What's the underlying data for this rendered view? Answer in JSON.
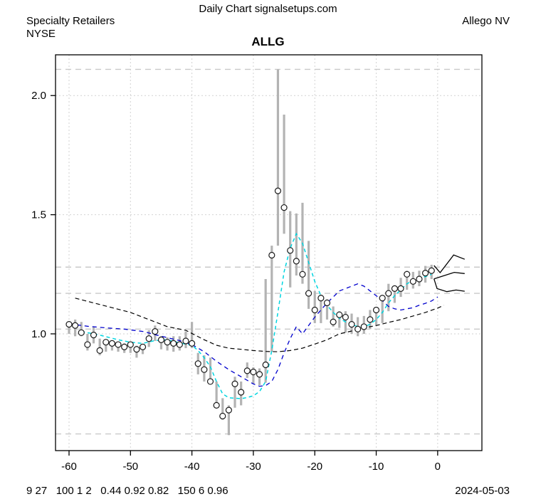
{
  "header": {
    "top_center": "Daily Chart signalsetups.com",
    "sector": "Specialty Retailers",
    "exchange": "NYSE",
    "company": "Allego NV",
    "symbol": "ALLG"
  },
  "footer": {
    "stats": "9 27   100 1 2   0.44 0.92 0.82   150 6 0.96",
    "date": "2024-05-03"
  },
  "chart_data": {
    "type": "bar",
    "subtype": "daily-price-range-bars-with-close-markers",
    "title": "ALLG",
    "xlabel": "",
    "ylabel": "",
    "xlim": [
      -62.2,
      7.2
    ],
    "ylim": [
      0.51,
      2.171
    ],
    "x_ticks": [
      -60,
      -50,
      -40,
      -30,
      -20,
      -10,
      0
    ],
    "x_tick_labels": [
      "-60",
      "-50",
      "-40",
      "-30",
      "-20",
      "-10",
      "0"
    ],
    "y_ticks": [
      1.0,
      1.5,
      2.0
    ],
    "y_tick_labels": [
      "1.0",
      "1.5",
      "2.0"
    ],
    "h_dashed_levels": [
      2.11,
      1.28,
      1.17,
      1.02,
      0.58
    ],
    "h_dotted_levels": [
      2.0,
      1.5,
      1.0
    ],
    "grid": "vertical dotted at every x tick; horizontal dotted at y ticks; horizontal dashed at signal levels",
    "bars_format": [
      "day",
      "high",
      "low",
      "close"
    ],
    "bars": [
      [
        -60,
        1.05,
        1.0,
        1.04
      ],
      [
        -59,
        1.06,
        0.99,
        1.035
      ],
      [
        -58,
        1.05,
        0.99,
        1.005
      ],
      [
        -57,
        1.0,
        0.93,
        0.955
      ],
      [
        -56,
        1.03,
        0.96,
        0.995
      ],
      [
        -55,
        0.98,
        0.91,
        0.93
      ],
      [
        -54,
        0.975,
        0.925,
        0.965
      ],
      [
        -53,
        0.97,
        0.93,
        0.96
      ],
      [
        -52,
        0.965,
        0.925,
        0.955
      ],
      [
        -51,
        0.96,
        0.92,
        0.945
      ],
      [
        -50,
        0.965,
        0.92,
        0.955
      ],
      [
        -49,
        0.95,
        0.9,
        0.935
      ],
      [
        -48,
        0.955,
        0.915,
        0.945
      ],
      [
        -47,
        1.015,
        0.945,
        0.98
      ],
      [
        -46,
        1.035,
        0.97,
        1.01
      ],
      [
        -45,
        0.99,
        0.935,
        0.975
      ],
      [
        -44,
        0.985,
        0.93,
        0.965
      ],
      [
        -43,
        0.99,
        0.925,
        0.96
      ],
      [
        -42,
        0.99,
        0.93,
        0.955
      ],
      [
        -41,
        1.01,
        0.94,
        0.97
      ],
      [
        -40,
        1.05,
        0.94,
        0.96
      ],
      [
        -39,
        0.92,
        0.83,
        0.875
      ],
      [
        -38,
        0.91,
        0.8,
        0.85
      ],
      [
        -37,
        0.9,
        0.79,
        0.8
      ],
      [
        -36,
        0.8,
        0.69,
        0.7
      ],
      [
        -35,
        0.73,
        0.64,
        0.655
      ],
      [
        -34,
        0.7,
        0.575,
        0.68
      ],
      [
        -33,
        0.82,
        0.69,
        0.79
      ],
      [
        -32,
        0.8,
        0.7,
        0.755
      ],
      [
        -31,
        0.88,
        0.815,
        0.845
      ],
      [
        -30,
        0.86,
        0.79,
        0.84
      ],
      [
        -29,
        0.855,
        0.785,
        0.83
      ],
      [
        -28,
        1.23,
        0.795,
        0.87
      ],
      [
        -27,
        1.37,
        0.925,
        1.33
      ],
      [
        -26,
        2.11,
        1.37,
        1.6
      ],
      [
        -25,
        1.92,
        1.42,
        1.53
      ],
      [
        -24,
        1.515,
        1.195,
        1.35
      ],
      [
        -23,
        1.505,
        1.245,
        1.305
      ],
      [
        -22,
        1.55,
        1.21,
        1.25
      ],
      [
        -21,
        1.39,
        1.105,
        1.17
      ],
      [
        -20,
        1.18,
        1.045,
        1.1
      ],
      [
        -19,
        1.165,
        1.045,
        1.15
      ],
      [
        -18,
        1.145,
        1.06,
        1.13
      ],
      [
        -17,
        1.115,
        1.03,
        1.05
      ],
      [
        -16,
        1.095,
        1.025,
        1.08
      ],
      [
        -15,
        1.095,
        1.005,
        1.07
      ],
      [
        -14,
        1.085,
        1.0,
        1.04
      ],
      [
        -13,
        1.07,
        0.99,
        1.02
      ],
      [
        -12,
        1.075,
        1.0,
        1.03
      ],
      [
        -11,
        1.1,
        1.02,
        1.06
      ],
      [
        -10,
        1.11,
        1.035,
        1.1
      ],
      [
        -9,
        1.155,
        1.045,
        1.15
      ],
      [
        -8,
        1.21,
        1.095,
        1.17
      ],
      [
        -7,
        1.195,
        1.13,
        1.19
      ],
      [
        -6,
        1.235,
        1.155,
        1.19
      ],
      [
        -5,
        1.265,
        1.185,
        1.25
      ],
      [
        -4,
        1.26,
        1.19,
        1.22
      ],
      [
        -3,
        1.265,
        1.2,
        1.23
      ],
      [
        -2,
        1.285,
        1.215,
        1.255
      ],
      [
        -1,
        1.29,
        1.23,
        1.265
      ]
    ],
    "series": [
      {
        "name": "slow-ma",
        "style": "dashed",
        "color": "#000000",
        "width": 1.2,
        "dash": "6,4",
        "points": [
          [
            -59,
            1.15
          ],
          [
            -56,
            1.13
          ],
          [
            -53,
            1.11
          ],
          [
            -50,
            1.09
          ],
          [
            -47,
            1.06
          ],
          [
            -44,
            1.03
          ],
          [
            -41,
            1.015
          ],
          [
            -38,
            0.975
          ],
          [
            -36,
            0.952
          ],
          [
            -34,
            0.94
          ],
          [
            -32,
            0.935
          ],
          [
            -30,
            0.93
          ],
          [
            -28,
            0.926
          ],
          [
            -26,
            0.925
          ],
          [
            -24,
            0.93
          ],
          [
            -22,
            0.94
          ],
          [
            -20,
            0.957
          ],
          [
            -18,
            0.975
          ],
          [
            -16,
            1.0
          ],
          [
            -14,
            1.012
          ],
          [
            -12,
            1.025
          ],
          [
            -10,
            1.035
          ],
          [
            -8,
            1.048
          ],
          [
            -6,
            1.06
          ],
          [
            -4,
            1.075
          ],
          [
            -2,
            1.09
          ],
          [
            0,
            1.108
          ],
          [
            1,
            1.12
          ]
        ]
      },
      {
        "name": "medium-ma",
        "style": "dashed",
        "color": "#0000cd",
        "width": 1.3,
        "dash": "6,5",
        "points": [
          [
            -60,
            1.042
          ],
          [
            -57,
            1.032
          ],
          [
            -54,
            1.025
          ],
          [
            -51,
            1.02
          ],
          [
            -48,
            1.01
          ],
          [
            -45,
            0.99
          ],
          [
            -42,
            0.972
          ],
          [
            -40,
            0.955
          ],
          [
            -38,
            0.925
          ],
          [
            -36,
            0.885
          ],
          [
            -34,
            0.85
          ],
          [
            -32,
            0.82
          ],
          [
            -30,
            0.79
          ],
          [
            -29,
            0.78
          ],
          [
            -28,
            0.783
          ],
          [
            -27,
            0.8
          ],
          [
            -26,
            0.85
          ],
          [
            -25,
            0.92
          ],
          [
            -24,
            0.98
          ],
          [
            -23,
            1.03
          ],
          [
            -22,
            1.0
          ],
          [
            -20,
            1.07
          ],
          [
            -18,
            1.13
          ],
          [
            -16,
            1.18
          ],
          [
            -14,
            1.2
          ],
          [
            -13,
            1.21
          ],
          [
            -12,
            1.2
          ],
          [
            -11,
            1.18
          ],
          [
            -10,
            1.16
          ],
          [
            -9,
            1.14
          ],
          [
            -8,
            1.115
          ],
          [
            -7,
            1.105
          ],
          [
            -6,
            1.1
          ],
          [
            -5,
            1.105
          ],
          [
            -4,
            1.11
          ],
          [
            -3,
            1.12
          ],
          [
            -2,
            1.128
          ],
          [
            -1,
            1.138
          ],
          [
            0,
            1.155
          ]
        ]
      },
      {
        "name": "fast-ma",
        "style": "dashed",
        "color": "#00d5e0",
        "width": 1.5,
        "dash": "5,4",
        "points": [
          [
            -58,
            1.01
          ],
          [
            -55,
            0.995
          ],
          [
            -52,
            0.975
          ],
          [
            -50,
            0.965
          ],
          [
            -48,
            0.96
          ],
          [
            -46,
            0.972
          ],
          [
            -44,
            0.975
          ],
          [
            -42,
            0.962
          ],
          [
            -40,
            0.952
          ],
          [
            -39,
            0.93
          ],
          [
            -38,
            0.9
          ],
          [
            -37,
            0.862
          ],
          [
            -36,
            0.8
          ],
          [
            -35,
            0.748
          ],
          [
            -34,
            0.732
          ],
          [
            -33,
            0.73
          ],
          [
            -32,
            0.728
          ],
          [
            -31,
            0.733
          ],
          [
            -30,
            0.74
          ],
          [
            -29,
            0.758
          ],
          [
            -28,
            0.8
          ],
          [
            -27,
            0.93
          ],
          [
            -26,
            1.09
          ],
          [
            -25,
            1.26
          ],
          [
            -24,
            1.36
          ],
          [
            -23,
            1.42
          ],
          [
            -22,
            1.38
          ],
          [
            -21,
            1.3
          ],
          [
            -20,
            1.22
          ],
          [
            -19,
            1.16
          ],
          [
            -18,
            1.12
          ],
          [
            -17,
            1.09
          ],
          [
            -16,
            1.065
          ],
          [
            -15,
            1.05
          ],
          [
            -14,
            1.04
          ],
          [
            -13,
            1.03
          ],
          [
            -12,
            1.03
          ],
          [
            -11,
            1.04
          ],
          [
            -10,
            1.06
          ],
          [
            -9,
            1.09
          ],
          [
            -8,
            1.13
          ],
          [
            -7,
            1.16
          ],
          [
            -6,
            1.185
          ],
          [
            -5,
            1.21
          ],
          [
            -4,
            1.225
          ],
          [
            -3,
            1.232
          ],
          [
            -2,
            1.24
          ],
          [
            -1,
            1.25
          ]
        ]
      }
    ],
    "projections": [
      {
        "name": "projection-upper-zigzag",
        "color": "#000000",
        "width": 1.3,
        "points": [
          [
            -0.6,
            1.287
          ],
          [
            0.4,
            1.257
          ],
          [
            2.6,
            1.331
          ],
          [
            4.4,
            1.313
          ]
        ]
      },
      {
        "name": "projection-middle",
        "color": "#000000",
        "width": 1.3,
        "points": [
          [
            -0.6,
            1.231
          ],
          [
            2.7,
            1.258
          ],
          [
            4.4,
            1.253
          ]
        ]
      },
      {
        "name": "projection-lower",
        "color": "#000000",
        "width": 1.3,
        "points": [
          [
            -0.6,
            1.231
          ],
          [
            -0.1,
            1.19
          ],
          [
            1.5,
            1.177
          ],
          [
            3.0,
            1.184
          ],
          [
            4.4,
            1.179
          ]
        ]
      }
    ],
    "colors": {
      "bar": "#b3b3b3",
      "close_marker_stroke": "#1a1a1a",
      "close_marker_fill": "#ffffff",
      "grid_dashed": "#c9c9c9",
      "grid_dotted": "#d2d2d2",
      "axis": "#000000",
      "background": "#ffffff"
    },
    "legend": "none"
  }
}
